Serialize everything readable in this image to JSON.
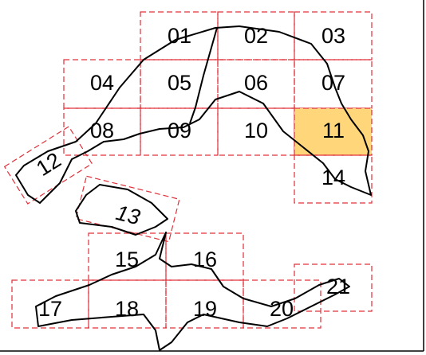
{
  "tiles": [
    {
      "label": "01"
    },
    {
      "label": "02"
    },
    {
      "label": "03"
    },
    {
      "label": "04"
    },
    {
      "label": "05"
    },
    {
      "label": "06"
    },
    {
      "label": "07"
    },
    {
      "label": "08"
    },
    {
      "label": "09"
    },
    {
      "label": "10"
    },
    {
      "label": "11",
      "highlighted": true
    },
    {
      "label": "12"
    },
    {
      "label": "13"
    },
    {
      "label": "14"
    },
    {
      "label": "15"
    },
    {
      "label": "16"
    },
    {
      "label": "17"
    },
    {
      "label": "18"
    },
    {
      "label": "19"
    },
    {
      "label": "20"
    },
    {
      "label": "21"
    }
  ]
}
